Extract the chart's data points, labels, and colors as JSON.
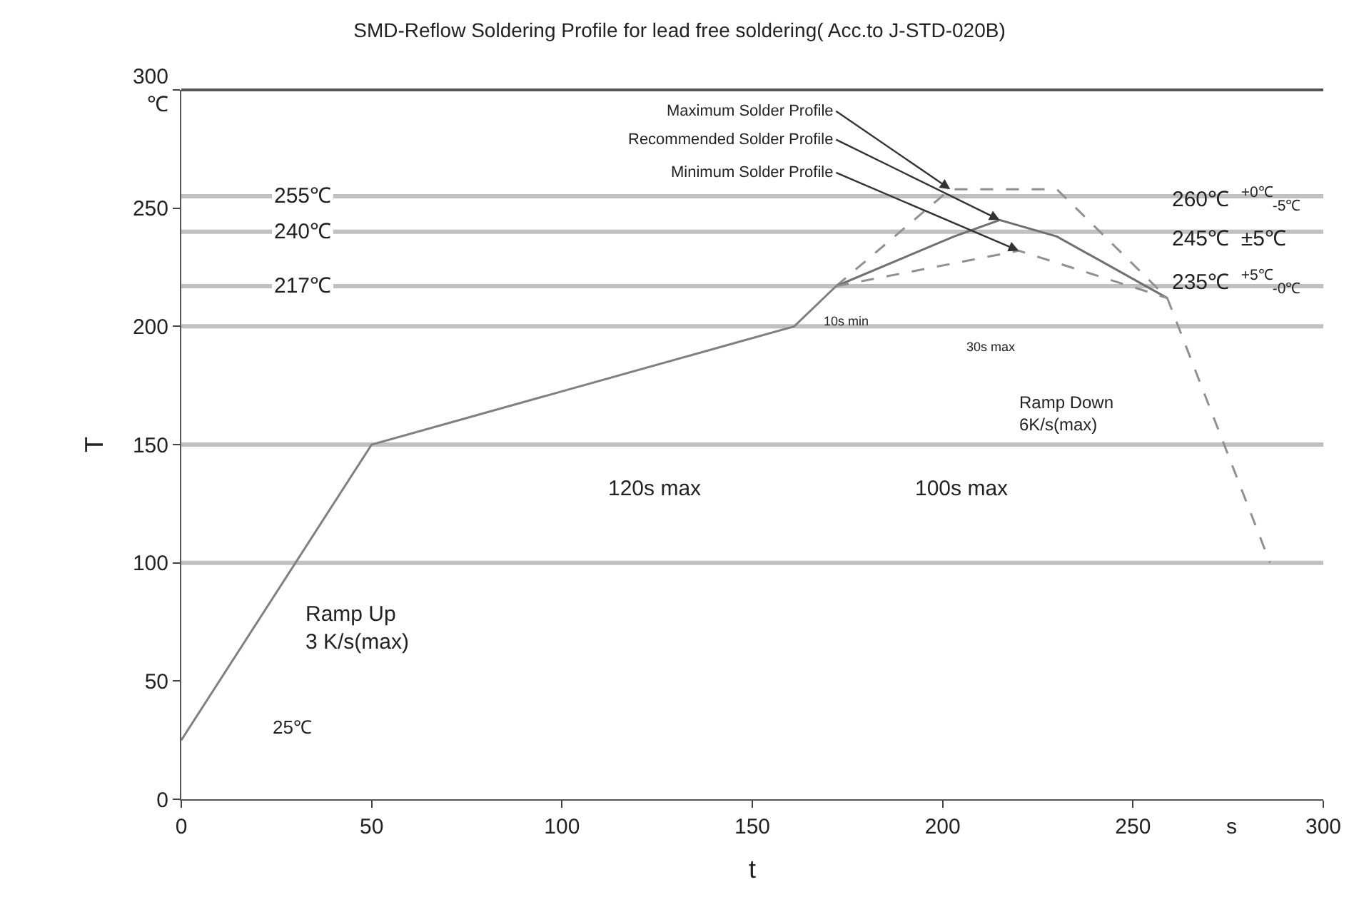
{
  "chart_data": {
    "type": "line",
    "title": "SMD-Reflow Soldering Profile for lead free soldering( Acc.to J-STD-020B)",
    "xlabel": "t",
    "ylabel": "T",
    "xlim": [
      0,
      300
    ],
    "ylim": [
      0,
      300
    ],
    "xticks": [
      0,
      50,
      100,
      150,
      200,
      250,
      300
    ],
    "yticks": [
      0,
      50,
      100,
      150,
      200,
      250,
      {
        "value": 300,
        "label": "300\n℃"
      }
    ],
    "grid": false,
    "legend": false,
    "marker": "none",
    "series": [
      {
        "color": "#808080",
        "line_style": "solid",
        "x": [
          0,
          50,
          161,
          172
        ],
        "values": [
          25,
          150,
          200,
          217
        ]
      },
      {
        "name": "Maximum Solder Profile",
        "color": "#909090",
        "line_style": "dashed",
        "x": [
          172,
          202,
          230,
          259,
          286
        ],
        "values": [
          217,
          258,
          258,
          212,
          100
        ]
      },
      {
        "name": "Recommended Solder Profile",
        "color": "#707070",
        "line_style": "solid",
        "x": [
          172,
          203,
          215,
          230,
          259
        ],
        "values": [
          217,
          238,
          245,
          238,
          212
        ]
      },
      {
        "name": "Minimum Solder Profile",
        "color": "#909090",
        "line_style": "dashed",
        "x": [
          172,
          220,
          259
        ],
        "values": [
          217,
          232,
          212
        ]
      }
    ],
    "ref_lines": [
      {
        "axis": "y",
        "value": 255,
        "label": "255℃",
        "color": "#c0c0c0"
      },
      {
        "axis": "y",
        "value": 240,
        "label": "240℃",
        "color": "#c0c0c0"
      },
      {
        "axis": "y",
        "value": 217,
        "label": "217℃",
        "color": "#c0c0c0"
      },
      {
        "axis": "y",
        "value": 200,
        "color": "#c0c0c0"
      },
      {
        "axis": "y",
        "value": 150,
        "color": "#c0c0c0"
      },
      {
        "axis": "y",
        "value": 100,
        "color": "#c0c0c0"
      }
    ],
    "annotations": [
      "120s max",
      "100s max",
      "30s max",
      "10s min",
      "Ramp Up\n3 K/s(max)",
      "Ramp Down\n6K/s(max)",
      "25℃",
      "260℃  $^{+0℃}$$_{-5℃}$",
      "245℃  ±5℃",
      "235℃  $^{+5℃}$$_{-0℃}$",
      "s"
    ]
  }
}
